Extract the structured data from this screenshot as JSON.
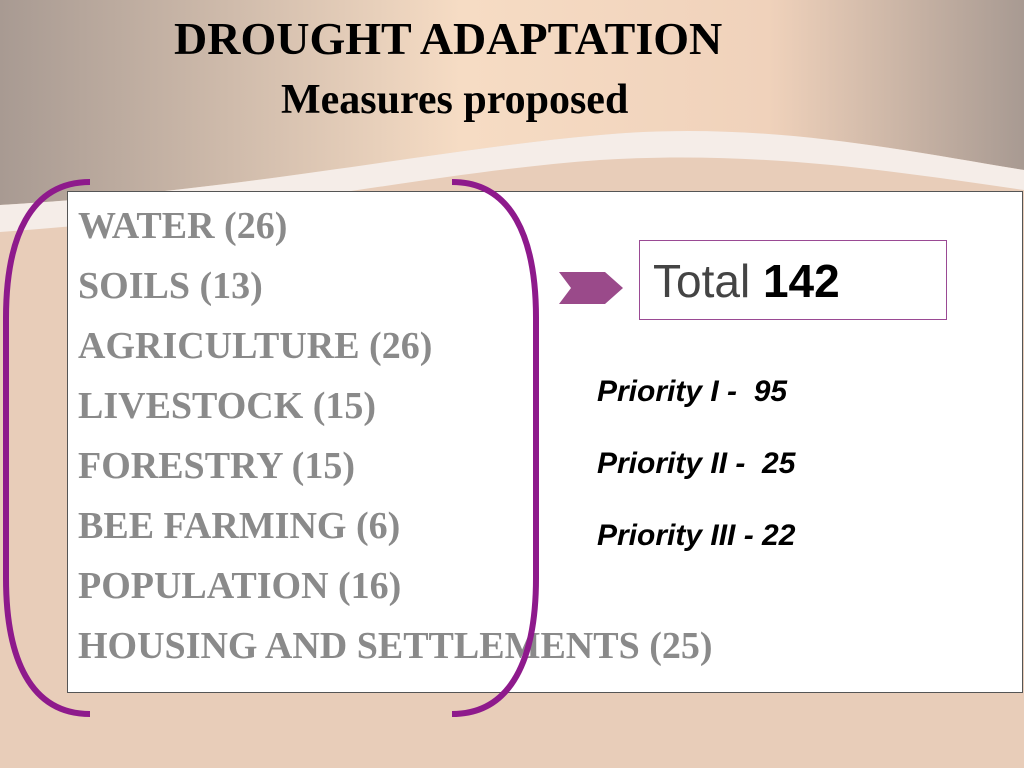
{
  "slide": {
    "title": "DROUGHT ADAPTATION",
    "subtitle": "Measures proposed"
  },
  "measures": [
    {
      "label": "WATER (26)"
    },
    {
      "label": "SOILS (13)"
    },
    {
      "label": "AGRICULTURE (26)"
    },
    {
      "label": "LIVESTOCK (15)"
    },
    {
      "label": "FORESTRY (15)"
    },
    {
      "label": "BEE FARMING (6)"
    },
    {
      "label": "POPULATION (16)"
    },
    {
      "label": "HOUSING AND SETTLEMENTS (25)"
    }
  ],
  "total": {
    "label": "Total",
    "value": "142"
  },
  "priorities": [
    {
      "label": "Priority I -  95"
    },
    {
      "label": "Priority II -  25"
    },
    {
      "label": "Priority III - 22"
    }
  ],
  "colors": {
    "bracket": "#8e1a8c",
    "arrow": "#9a4a8a",
    "measure_text": "#8a8a8a"
  },
  "icons": {
    "arrow": "chevron-arrow-right-icon"
  }
}
